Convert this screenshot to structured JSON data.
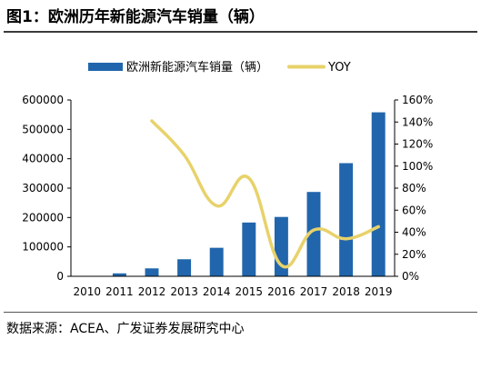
{
  "figure_title": "图1：欧洲历年新能源汽车销量（辆）",
  "source_note": "数据来源：ACEA、广发证券发展研究中心",
  "chart_data": {
    "type": "bar+line",
    "title": "",
    "categories": [
      "2010",
      "2011",
      "2012",
      "2013",
      "2014",
      "2015",
      "2016",
      "2017",
      "2018",
      "2019"
    ],
    "series": [
      {
        "name": "欧洲新能源汽车销量（辆）",
        "type": "bar",
        "axis": "left",
        "color": "#2166ac",
        "values": [
          0,
          10000,
          27000,
          58000,
          97000,
          183000,
          202000,
          287000,
          385000,
          558000
        ]
      },
      {
        "name": "YOY",
        "type": "line",
        "axis": "right",
        "color": "#e8d26a",
        "values": [
          null,
          null,
          1.41,
          1.1,
          0.64,
          0.89,
          0.1,
          0.42,
          0.34,
          0.45
        ]
      }
    ],
    "y_left": {
      "min": 0,
      "max": 600000,
      "ticks": [
        "0",
        "100000",
        "200000",
        "300000",
        "400000",
        "500000",
        "600000"
      ]
    },
    "y_right": {
      "min": 0,
      "max": 1.6,
      "ticks": [
        "0%",
        "20%",
        "40%",
        "60%",
        "80%",
        "100%",
        "120%",
        "140%",
        "160%"
      ]
    },
    "legend_position": "top-center",
    "grid": false
  }
}
